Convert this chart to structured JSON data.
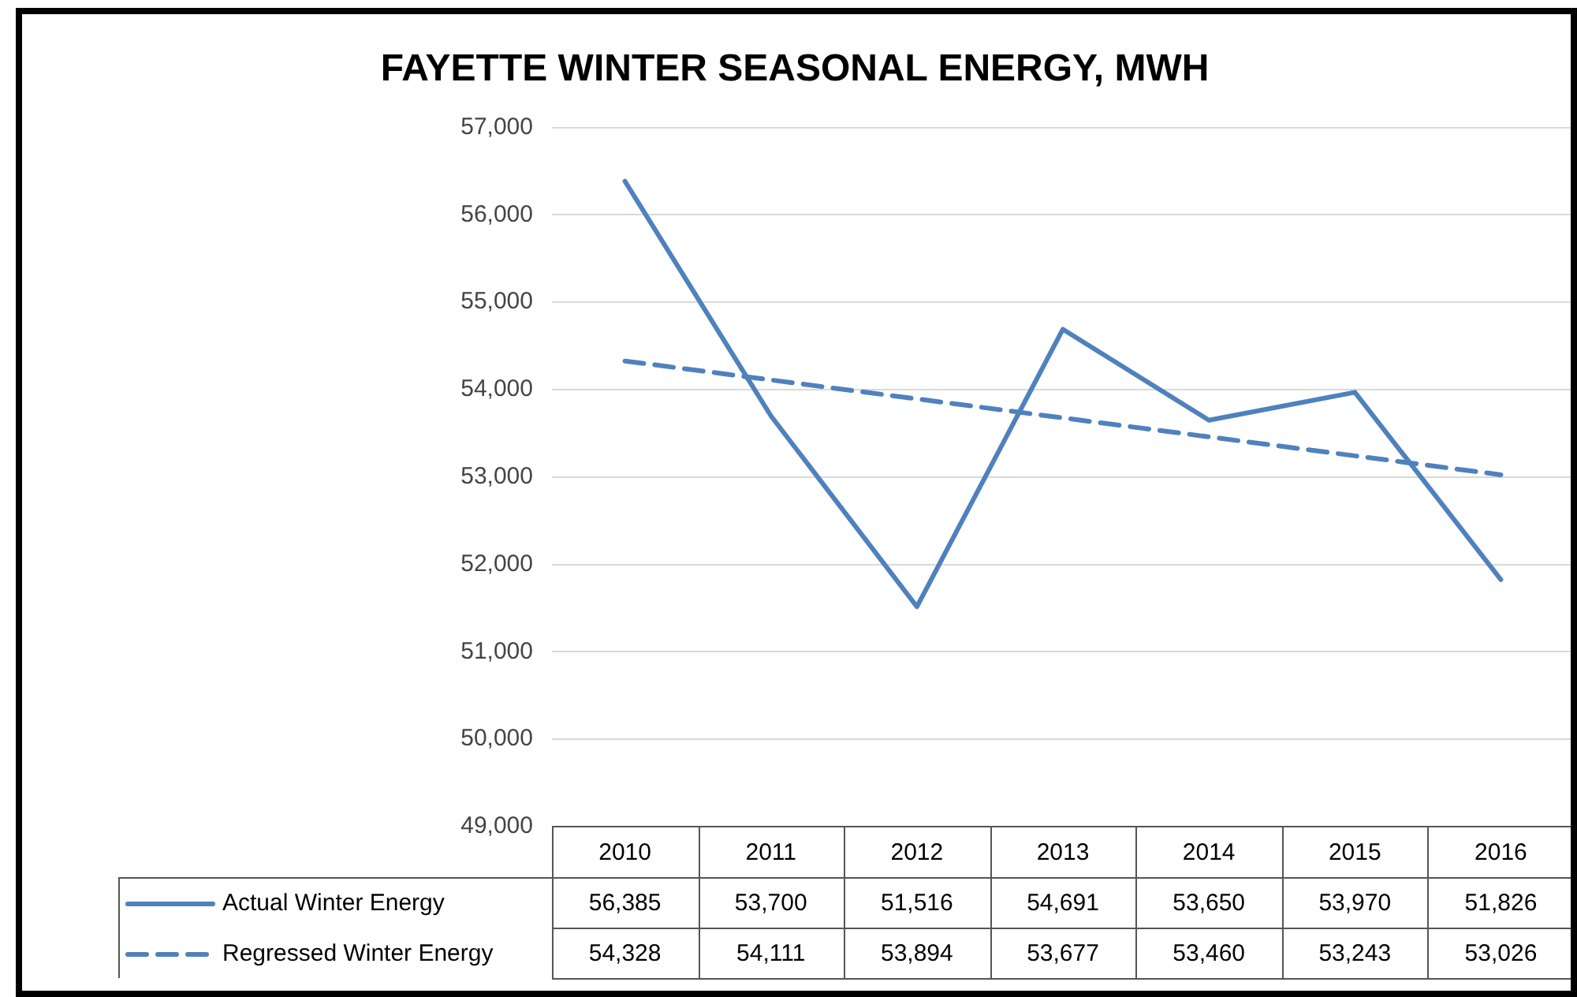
{
  "chart_data": {
    "type": "line",
    "title": "FAYETTE WINTER SEASONAL ENERGY, MWH",
    "categories": [
      "2010",
      "2011",
      "2012",
      "2013",
      "2014",
      "2015",
      "2016"
    ],
    "series": [
      {
        "name": "Actual Winter Energy",
        "color": "#4f81bd",
        "line_style": "solid",
        "values": [
          56385,
          53700,
          51516,
          54691,
          53650,
          53970,
          51826
        ],
        "value_labels": [
          "56,385",
          "53,700",
          "51,516",
          "54,691",
          "53,650",
          "53,970",
          "51,826"
        ]
      },
      {
        "name": "Regressed Winter Energy",
        "color": "#4f81bd",
        "line_style": "dashed",
        "values": [
          54328,
          54111,
          53894,
          53677,
          53460,
          53243,
          53026
        ],
        "value_labels": [
          "54,328",
          "54,111",
          "53,894",
          "53,677",
          "53,460",
          "53,243",
          "53,026"
        ]
      }
    ],
    "ylim": [
      49000,
      57000
    ],
    "yticks": [
      {
        "value": 49000,
        "label": "49,000"
      },
      {
        "value": 50000,
        "label": "50,000"
      },
      {
        "value": 51000,
        "label": "51,000"
      },
      {
        "value": 52000,
        "label": "52,000"
      },
      {
        "value": 53000,
        "label": "53,000"
      },
      {
        "value": 54000,
        "label": "54,000"
      },
      {
        "value": 55000,
        "label": "55,000"
      },
      {
        "value": 56000,
        "label": "56,000"
      },
      {
        "value": 57000,
        "label": "57,000"
      }
    ],
    "grid": "y",
    "legend": "bottom",
    "marker": "none"
  }
}
